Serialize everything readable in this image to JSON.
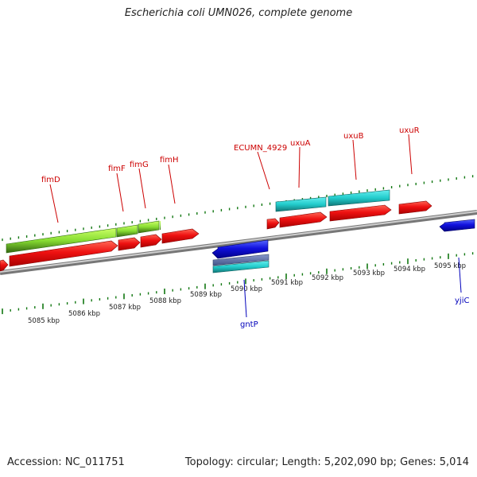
{
  "title": "Escherichia coli UMN026, complete genome",
  "accession_text": "Accession: NC_011751",
  "summary_text": "Topology: circular; Length: 5,202,090 bp; Genes: 5,014",
  "colors": {
    "forward_gene": "#ee1111",
    "reverse_gene": "#1111dd",
    "operon_green": "#88dd33",
    "operon_cyan": "#22cccc",
    "tick_green": "#117711",
    "backbone": "#999999"
  },
  "scale_labels": [
    "5085 kbp",
    "5086 kbp",
    "5087 kbp",
    "5088 kbp",
    "5089 kbp",
    "5090 kbp",
    "5091 kbp",
    "5092 kbp",
    "5093 kbp",
    "5094 kbp",
    "5095 kbp"
  ],
  "gene_labels": {
    "fimD": "fimD",
    "fimF": "fimF",
    "fimG": "fimG",
    "fimH": "fimH",
    "ecumn": "ECUMN_4929",
    "uxuA": "uxuA",
    "uxuB": "uxuB",
    "uxuR": "uxuR",
    "gntP": "gntP",
    "yjiC": "yjiC"
  }
}
